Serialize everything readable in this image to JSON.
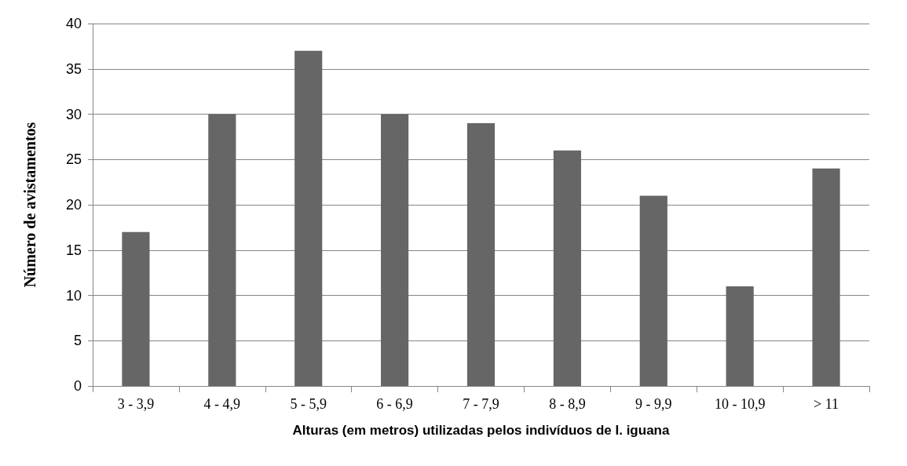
{
  "chart_data": {
    "type": "bar",
    "xlabel": "Alturas (em metros) utilizadas pelos indivíduos de I. iguana",
    "ylabel": "Número de avistamentos",
    "categories": [
      "3 - 3,9",
      "4 - 4,9",
      "5 - 5,9",
      "6 - 6,9",
      "7 - 7,9",
      "8 - 8,9",
      "9 - 9,9",
      "10 - 10,9",
      "> 11"
    ],
    "values": [
      17,
      30,
      37,
      30,
      29,
      26,
      21,
      11,
      24
    ],
    "color": "#666666",
    "ylim": [
      0,
      40
    ],
    "yticks": [
      0,
      5,
      10,
      15,
      20,
      25,
      30,
      35,
      40
    ],
    "grid": "y"
  }
}
